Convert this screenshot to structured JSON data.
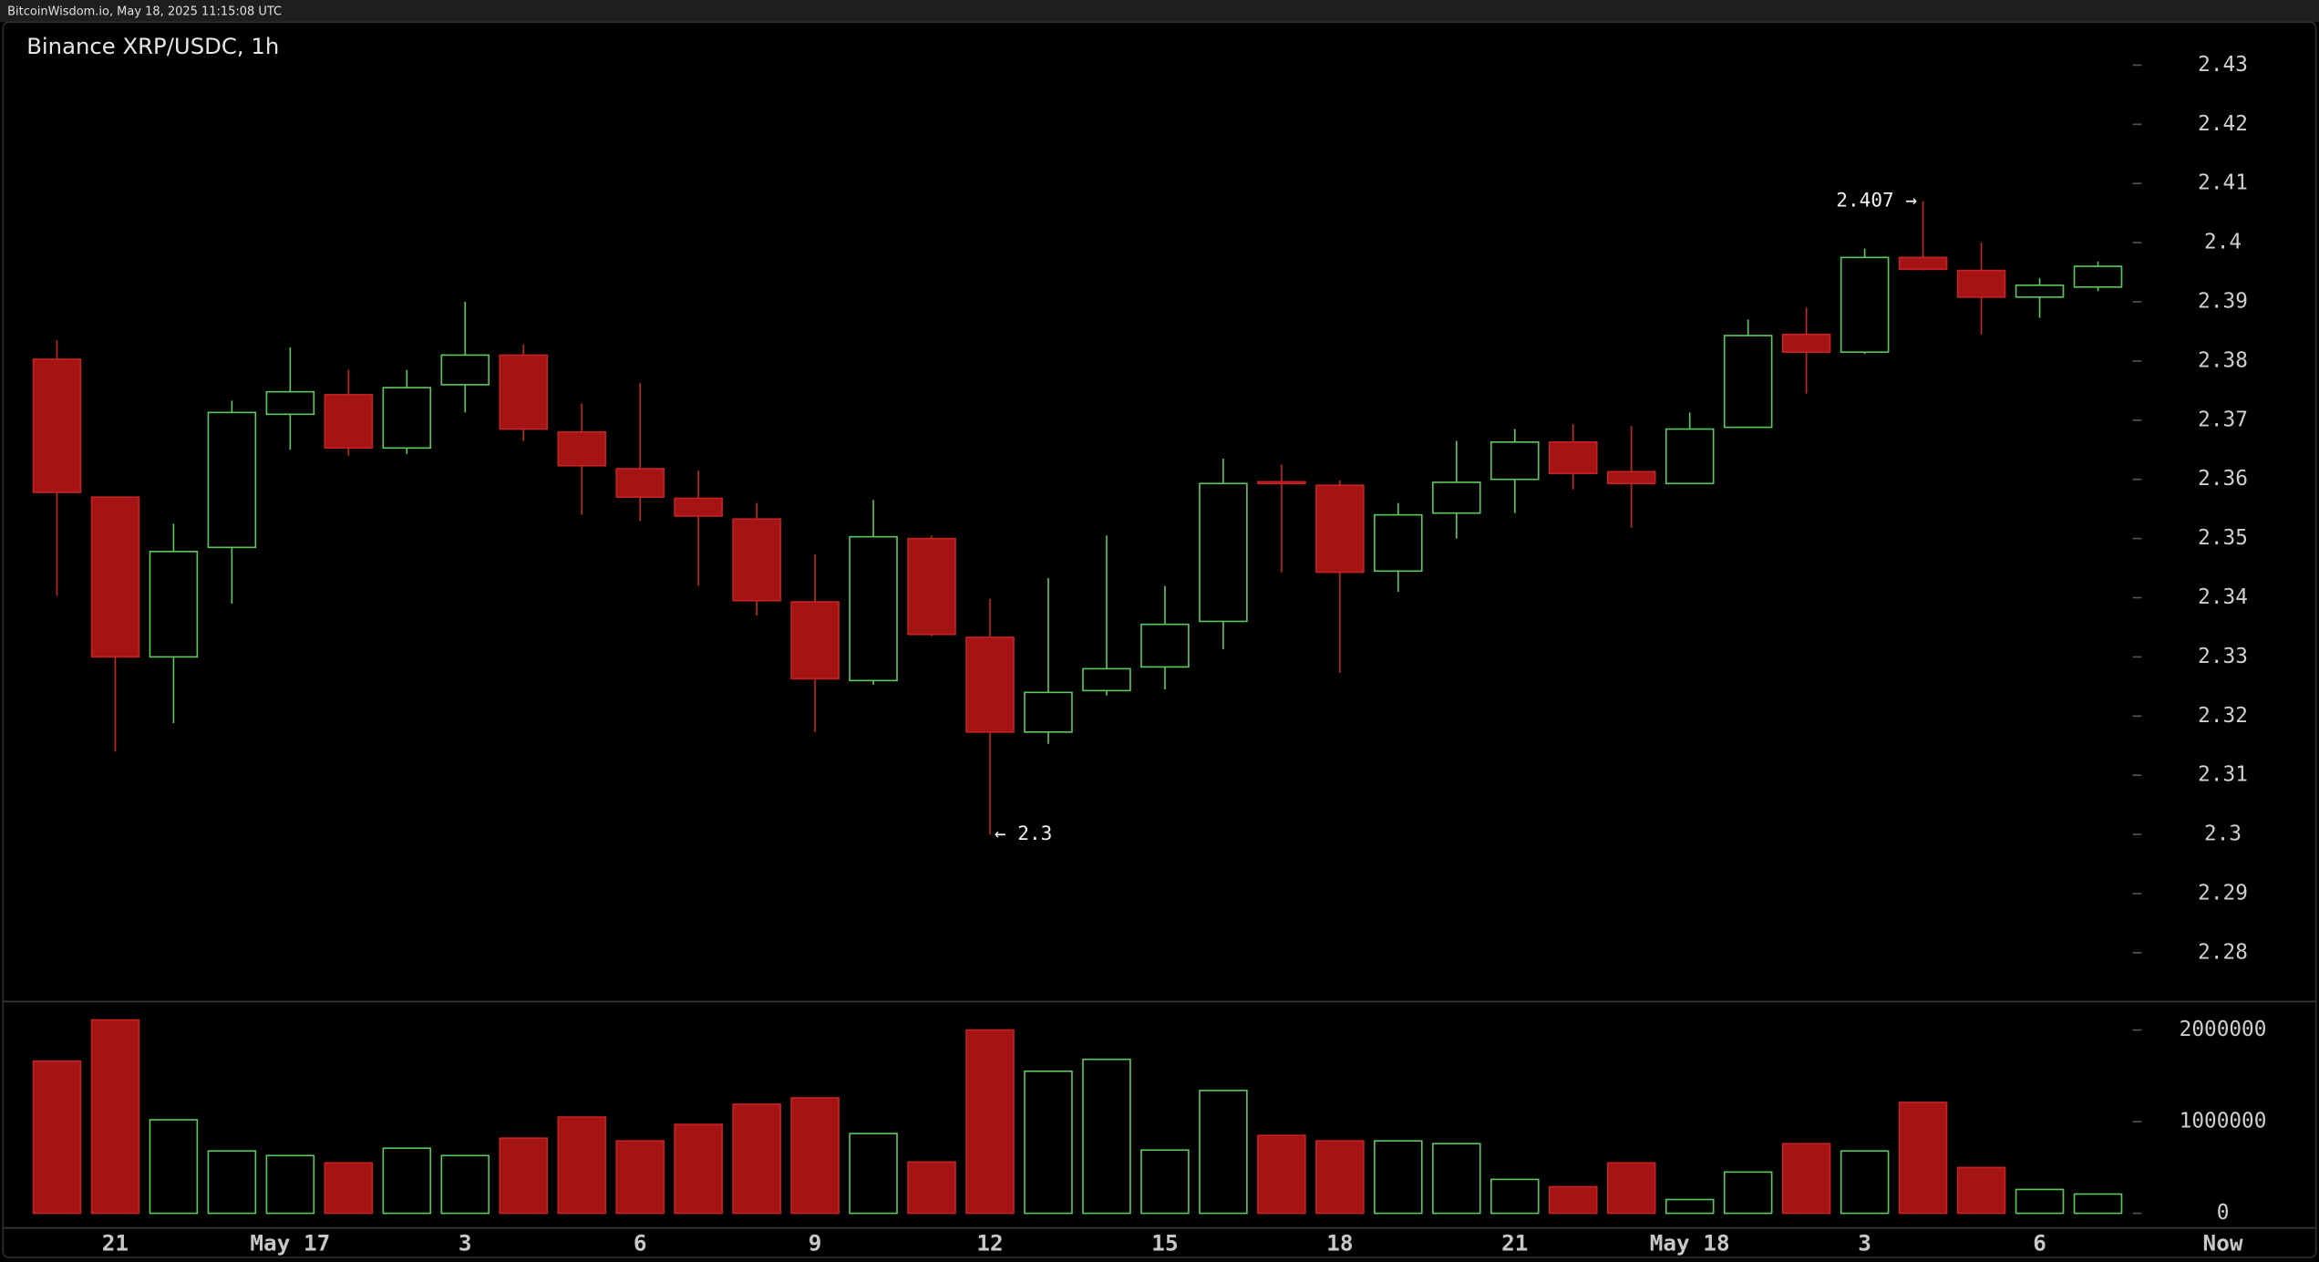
{
  "header": "BitcoinWisdom.io, May 18, 2025 11:15:08 UTC",
  "chart_data": {
    "type": "candlestick",
    "title": "Binance XRP/USDC, 1h",
    "categories": [
      null,
      "21",
      null,
      null,
      "May 17",
      null,
      null,
      "3",
      null,
      null,
      "6",
      null,
      null,
      "9",
      null,
      null,
      "12",
      null,
      null,
      "15",
      null,
      null,
      "18",
      null,
      null,
      "21",
      null,
      null,
      "May 18",
      null,
      null,
      "3",
      null,
      null,
      "6",
      null
    ],
    "now_label": "Now",
    "open": [
      2.3803,
      2.357,
      2.33,
      2.3485,
      2.371,
      2.3743,
      2.3653,
      2.376,
      2.381,
      2.368,
      2.3618,
      2.3568,
      2.3533,
      2.3393,
      2.326,
      2.35,
      2.3333,
      2.3173,
      2.3243,
      2.3283,
      2.336,
      2.3596,
      2.359,
      2.3445,
      2.3543,
      2.36,
      2.3663,
      2.3613,
      2.3593,
      2.3688,
      2.3845,
      2.3815,
      2.3975,
      2.3953,
      2.3908,
      2.3925
    ],
    "high": [
      2.3835,
      2.357,
      2.3525,
      2.3733,
      2.3823,
      2.3785,
      2.3785,
      2.39,
      2.3828,
      2.3728,
      2.3763,
      2.3615,
      2.356,
      2.3473,
      2.3565,
      2.3505,
      2.3398,
      2.3433,
      2.3505,
      2.342,
      2.3635,
      2.3625,
      2.3598,
      2.356,
      2.3665,
      2.3685,
      2.3693,
      2.369,
      2.3713,
      2.387,
      2.389,
      2.399,
      2.407,
      2.4,
      2.394,
      2.3968
    ],
    "low": [
      2.3403,
      2.314,
      2.3188,
      2.339,
      2.365,
      2.364,
      2.3643,
      2.3713,
      2.3665,
      2.354,
      2.353,
      2.342,
      2.337,
      2.3173,
      2.3253,
      2.3335,
      2.3,
      2.3153,
      2.3235,
      2.3245,
      2.3313,
      2.3443,
      2.3273,
      2.341,
      2.35,
      2.3543,
      2.3583,
      2.3518,
      2.3593,
      2.3688,
      2.3745,
      2.3812,
      2.3953,
      2.3845,
      2.3873,
      2.3918
    ],
    "close": [
      2.3578,
      2.33,
      2.3478,
      2.3713,
      2.3748,
      2.3653,
      2.3755,
      2.381,
      2.3685,
      2.3623,
      2.357,
      2.3538,
      2.3395,
      2.3263,
      2.3503,
      2.3338,
      2.3173,
      2.324,
      2.328,
      2.3355,
      2.3593,
      2.3593,
      2.3443,
      2.354,
      2.3595,
      2.3663,
      2.361,
      2.3593,
      2.3685,
      2.3843,
      2.3815,
      2.3975,
      2.3955,
      2.3908,
      2.3928,
      2.396
    ],
    "volume": [
      1660000,
      2110000,
      1020000,
      680000,
      630000,
      550000,
      710000,
      630000,
      820000,
      1050000,
      790000,
      970000,
      1190000,
      1260000,
      870000,
      560000,
      2000000,
      1550000,
      1680000,
      690000,
      1340000,
      850000,
      790000,
      790000,
      760000,
      370000,
      290000,
      550000,
      150000,
      450000,
      760000,
      680000,
      1210000,
      500000,
      260000,
      210000
    ],
    "up_color": "#5cc85c",
    "down_color": "#a51414",
    "ylim": [
      2.27175,
      2.43725
    ],
    "yticks": [
      2.28,
      2.29,
      2.3,
      2.31,
      2.32,
      2.33,
      2.34,
      2.35,
      2.36,
      2.37,
      2.38,
      2.39,
      2.4,
      2.41,
      2.42,
      2.43
    ],
    "volume_ylim": [
      -160000,
      2310000
    ],
    "volume_yticks": [
      0,
      1000000,
      2000000
    ],
    "annotations": [
      {
        "text": "2.407 →",
        "value": 2.407
      },
      {
        "text": "← 2.3",
        "value": 2.3
      }
    ]
  }
}
